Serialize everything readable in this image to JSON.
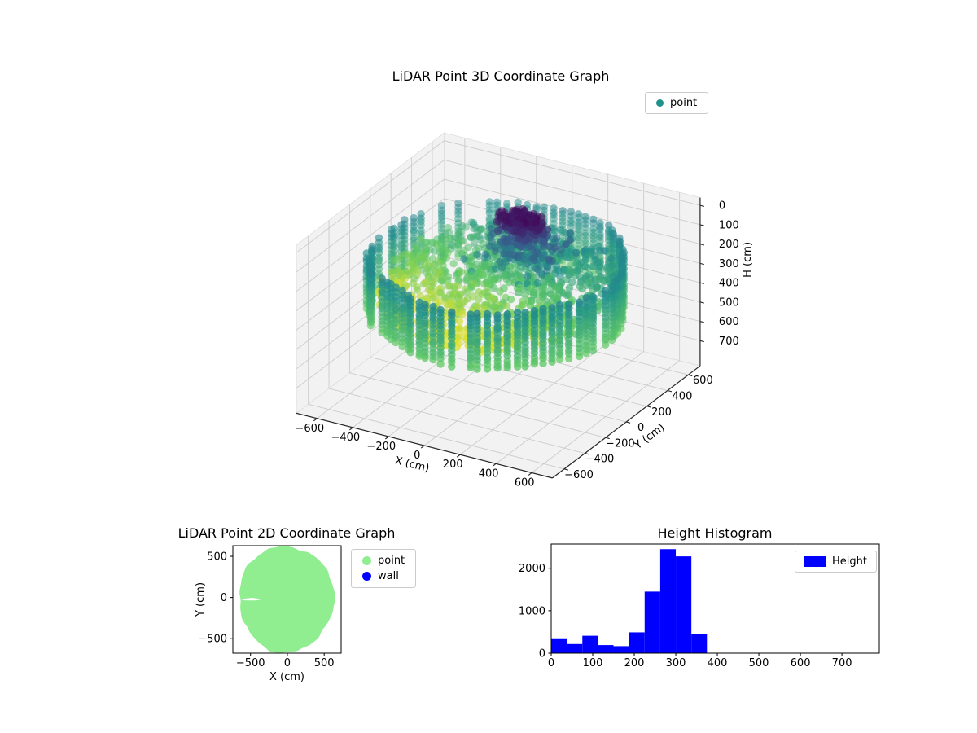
{
  "figure": {
    "background": "#ffffff"
  },
  "chart_data": [
    {
      "type": "scatter3d",
      "title": "LiDAR Point 3D Coordinate Graph",
      "xlabel": "X (cm)",
      "ylabel": "Y (cm)",
      "hlabel": "H (cm)",
      "legend": [
        {
          "label": "point",
          "color": "#21918c"
        }
      ],
      "xticks": [
        -600,
        -400,
        -200,
        0,
        200,
        400,
        600
      ],
      "yticks": [
        -600,
        -400,
        -200,
        0,
        200,
        400,
        600
      ],
      "hticks": [
        0,
        100,
        200,
        300,
        400,
        500,
        600,
        700
      ],
      "xlim": [
        -715,
        715
      ],
      "ylim": [
        -715,
        715
      ],
      "hlim": [
        -40,
        830
      ],
      "h_axis_inverted": true,
      "colormap": "viridis",
      "grid": true,
      "pane_color": "#f2f2f3",
      "grid_color": "#cccccc",
      "cloud": {
        "description": "circular LiDAR sweep: outer wall ring of vertical point columns, tilted interior floor disk (yellow-green front to teal back), dark low-height cluster right of center",
        "seed": 11,
        "marker_px": 4.7,
        "rim": {
          "radius": 618,
          "r_jitter": 22,
          "wobble": [
            5,
            16,
            2.0
          ],
          "h": [
            150,
            430
          ],
          "step": 20,
          "cols": 84,
          "t": [
            0.47,
            0.74
          ],
          "gap_arc": [
            115,
            235
          ],
          "gap_rate": 0.33,
          "gap_base": 0.05
        },
        "floor": {
          "rmax": 580,
          "n": 1150,
          "h0": 300,
          "tilt": -80,
          "noise": 26,
          "t0": 0.74,
          "ty": -0.3,
          "tx": 0.08
        },
        "cluster": {
          "x": 0,
          "y": 235,
          "sx": 135,
          "sy": 100,
          "n": 280,
          "h": [
            30,
            200
          ],
          "t": [
            0.02,
            0.3
          ]
        },
        "halo": {
          "x": 30,
          "y": 210,
          "sx": 270,
          "sy": 230,
          "n": 170,
          "h": [
            120,
            300
          ],
          "t": [
            0.28,
            0.55
          ]
        }
      }
    },
    {
      "type": "scatter",
      "title": "LiDAR Point 2D Coordinate Graph",
      "xlabel": "X (cm)",
      "ylabel": "Y (cm)",
      "legend": [
        {
          "label": "point",
          "color": "#90ee90"
        },
        {
          "label": "wall",
          "color": "#0000ff"
        }
      ],
      "xticks": [
        -500,
        0,
        500
      ],
      "yticks": [
        500,
        0,
        -500
      ],
      "xlim": [
        -740,
        730
      ],
      "ylim": [
        -676,
        629
      ],
      "blob": {
        "cx": -15,
        "cy": -18,
        "r": 645,
        "harmonics": [
          [
            3,
            14,
            0.8
          ],
          [
            7,
            9,
            2.1
          ],
          [
            13,
            6,
            0.5
          ],
          [
            23,
            3.5,
            1.2
          ]
        ]
      },
      "notches": [
        [
          [
            -640,
            -20
          ],
          [
            -480,
            -4
          ],
          [
            -335,
            -22
          ],
          [
            -430,
            -36
          ],
          [
            -585,
            -34
          ]
        ],
        [
          [
            -738,
            -22
          ],
          [
            -642,
            -23
          ],
          [
            -642,
            -33
          ],
          [
            -738,
            -30
          ]
        ]
      ]
    },
    {
      "type": "bar",
      "title": "Height Histogram",
      "legend": [
        {
          "label": "Height",
          "color": "#0000ff"
        }
      ],
      "bar_color": "#0000ff",
      "bin_edges": [
        0,
        37.5,
        75,
        112.5,
        150,
        187.5,
        225,
        262.5,
        300,
        337.5,
        375
      ],
      "counts": [
        350,
        215,
        410,
        190,
        165,
        490,
        1450,
        2450,
        2280,
        455
      ],
      "xticks": [
        0,
        100,
        200,
        300,
        400,
        500,
        600,
        700
      ],
      "yticks": [
        0,
        1000,
        2000
      ],
      "xlim": [
        0,
        790
      ],
      "ylim": [
        0,
        2570
      ]
    }
  ]
}
